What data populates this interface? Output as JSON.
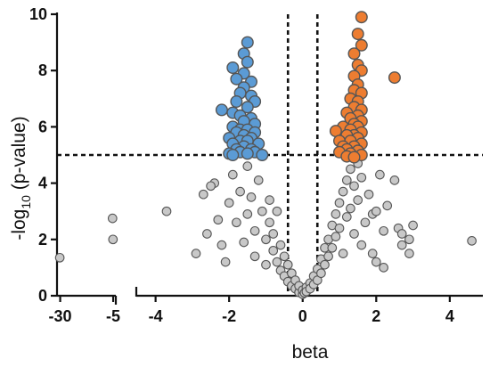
{
  "chart_data": {
    "type": "scatter",
    "title": "",
    "xlabel": "beta",
    "ylabel_parts": [
      "-log",
      "10",
      " (p-value)"
    ],
    "xlim_left_segment": [
      -31.5,
      -4.6
    ],
    "xlim_main_segment": [
      -4.5,
      4.9
    ],
    "ylim": [
      0,
      10
    ],
    "x_ticks": [
      {
        "value": -30,
        "label": "-30",
        "segment": "left"
      },
      {
        "value": -5,
        "label": "-5",
        "segment": "left"
      },
      {
        "value": -4,
        "label": "-4",
        "segment": "main"
      },
      {
        "value": -2,
        "label": "-2",
        "segment": "main"
      },
      {
        "value": 0,
        "label": "0",
        "segment": "main"
      },
      {
        "value": 2,
        "label": "2",
        "segment": "main"
      },
      {
        "value": 4,
        "label": "4",
        "segment": "main"
      }
    ],
    "y_ticks": [
      {
        "value": 0,
        "label": "0"
      },
      {
        "value": 2,
        "label": "2"
      },
      {
        "value": 4,
        "label": "4"
      },
      {
        "value": 6,
        "label": "6"
      },
      {
        "value": 8,
        "label": "8"
      },
      {
        "value": 10,
        "label": "10"
      }
    ],
    "thresholds": {
      "y": 5,
      "x": [
        -0.4,
        0.4
      ]
    },
    "colors": {
      "down": "#5b9bd5",
      "up": "#ed7d31",
      "ns": "#c8c8c8",
      "outline": "#555555"
    },
    "series": [
      {
        "group": "down",
        "points": [
          [
            -1.5,
            9.0
          ],
          [
            -1.6,
            8.6
          ],
          [
            -1.5,
            8.3
          ],
          [
            -1.9,
            8.1
          ],
          [
            -1.6,
            7.9
          ],
          [
            -1.8,
            7.7
          ],
          [
            -1.4,
            7.6
          ],
          [
            -1.6,
            7.4
          ],
          [
            -1.7,
            7.2
          ],
          [
            -1.4,
            7.1
          ],
          [
            -1.3,
            6.9
          ],
          [
            -1.8,
            6.9
          ],
          [
            -1.5,
            6.7
          ],
          [
            -2.2,
            6.6
          ],
          [
            -1.9,
            6.5
          ],
          [
            -1.7,
            6.4
          ],
          [
            -1.4,
            6.3
          ],
          [
            -1.6,
            6.2
          ],
          [
            -1.3,
            6.1
          ],
          [
            -1.9,
            6.0
          ],
          [
            -1.7,
            5.9
          ],
          [
            -1.5,
            5.9
          ],
          [
            -1.8,
            5.8
          ],
          [
            -1.3,
            5.8
          ],
          [
            -1.6,
            5.7
          ],
          [
            -1.4,
            5.6
          ],
          [
            -2.0,
            5.6
          ],
          [
            -1.7,
            5.5
          ],
          [
            -1.5,
            5.5
          ],
          [
            -1.9,
            5.4
          ],
          [
            -1.2,
            5.4
          ],
          [
            -1.6,
            5.3
          ],
          [
            -1.8,
            5.2
          ],
          [
            -1.4,
            5.2
          ],
          [
            -1.3,
            5.1
          ],
          [
            -1.7,
            5.1
          ],
          [
            -2.0,
            5.05
          ],
          [
            -1.5,
            5.05
          ],
          [
            -1.9,
            5.0
          ],
          [
            -1.1,
            5.0
          ]
        ]
      },
      {
        "group": "up",
        "points": [
          [
            1.6,
            9.9
          ],
          [
            1.5,
            9.3
          ],
          [
            1.6,
            8.9
          ],
          [
            1.4,
            8.6
          ],
          [
            1.5,
            8.2
          ],
          [
            1.6,
            8.0
          ],
          [
            1.4,
            7.8
          ],
          [
            2.5,
            7.75
          ],
          [
            1.5,
            7.5
          ],
          [
            1.4,
            7.3
          ],
          [
            1.6,
            7.2
          ],
          [
            1.3,
            7.0
          ],
          [
            1.5,
            6.9
          ],
          [
            1.4,
            6.7
          ],
          [
            1.6,
            6.6
          ],
          [
            1.2,
            6.5
          ],
          [
            1.5,
            6.4
          ],
          [
            1.3,
            6.3
          ],
          [
            1.6,
            6.2
          ],
          [
            1.4,
            6.1
          ],
          [
            1.1,
            6.0
          ],
          [
            1.5,
            6.0
          ],
          [
            1.3,
            5.9
          ],
          [
            0.9,
            5.85
          ],
          [
            1.6,
            5.8
          ],
          [
            1.4,
            5.7
          ],
          [
            1.2,
            5.7
          ],
          [
            1.5,
            5.6
          ],
          [
            1.0,
            5.5
          ],
          [
            1.3,
            5.5
          ],
          [
            1.6,
            5.4
          ],
          [
            1.1,
            5.3
          ],
          [
            1.4,
            5.3
          ],
          [
            1.2,
            5.2
          ],
          [
            1.5,
            5.15
          ],
          [
            1.0,
            5.1
          ],
          [
            1.3,
            5.05
          ],
          [
            1.6,
            5.0
          ],
          [
            1.2,
            4.95
          ],
          [
            1.4,
            4.92
          ]
        ]
      },
      {
        "group": "ns",
        "points": [
          [
            -30.2,
            1.35
          ],
          [
            -5.3,
            2.75
          ],
          [
            -5.1,
            2.0
          ],
          [
            -3.7,
            3.0
          ],
          [
            -2.9,
            1.5
          ],
          [
            -2.6,
            2.2
          ],
          [
            -2.7,
            3.6
          ],
          [
            -2.3,
            2.7
          ],
          [
            -2.4,
            4.0
          ],
          [
            -2.5,
            3.9
          ],
          [
            -2.2,
            1.8
          ],
          [
            -2.0,
            3.3
          ],
          [
            -2.1,
            1.2
          ],
          [
            -1.9,
            4.3
          ],
          [
            -1.8,
            2.6
          ],
          [
            -1.7,
            3.7
          ],
          [
            -1.6,
            1.9
          ],
          [
            -1.5,
            4.6
          ],
          [
            -1.5,
            2.9
          ],
          [
            -1.4,
            3.5
          ],
          [
            -1.3,
            1.4
          ],
          [
            -1.3,
            2.3
          ],
          [
            -1.2,
            4.1
          ],
          [
            -1.1,
            3.0
          ],
          [
            -1.0,
            2.0
          ],
          [
            -1.0,
            1.1
          ],
          [
            -0.9,
            2.6
          ],
          [
            -0.9,
            3.4
          ],
          [
            -0.8,
            1.6
          ],
          [
            -0.8,
            2.2
          ],
          [
            -0.7,
            1.2
          ],
          [
            -0.7,
            3.0
          ],
          [
            -0.6,
            0.9
          ],
          [
            -0.6,
            1.8
          ],
          [
            -0.5,
            0.7
          ],
          [
            -0.5,
            1.4
          ],
          [
            -0.4,
            0.5
          ],
          [
            -0.4,
            1.1
          ],
          [
            -0.3,
            0.35
          ],
          [
            -0.3,
            0.8
          ],
          [
            -0.2,
            0.25
          ],
          [
            -0.2,
            0.55
          ],
          [
            -0.1,
            0.12
          ],
          [
            -0.1,
            0.35
          ],
          [
            0.0,
            0.05
          ],
          [
            0.0,
            0.2
          ],
          [
            0.05,
            0.1
          ],
          [
            0.1,
            0.3
          ],
          [
            0.1,
            0.15
          ],
          [
            0.2,
            0.45
          ],
          [
            0.2,
            0.25
          ],
          [
            0.3,
            0.7
          ],
          [
            0.3,
            0.4
          ],
          [
            0.4,
            0.95
          ],
          [
            0.4,
            0.55
          ],
          [
            0.5,
            1.3
          ],
          [
            0.5,
            0.8
          ],
          [
            0.6,
            1.7
          ],
          [
            0.6,
            1.1
          ],
          [
            0.7,
            2.0
          ],
          [
            0.7,
            1.4
          ],
          [
            0.8,
            2.5
          ],
          [
            0.8,
            1.7
          ],
          [
            0.9,
            2.9
          ],
          [
            0.9,
            2.1
          ],
          [
            1.0,
            3.3
          ],
          [
            1.0,
            2.4
          ],
          [
            1.1,
            3.7
          ],
          [
            1.1,
            1.5
          ],
          [
            1.2,
            4.1
          ],
          [
            1.2,
            2.8
          ],
          [
            1.3,
            4.5
          ],
          [
            1.3,
            3.1
          ],
          [
            1.4,
            3.9
          ],
          [
            1.4,
            2.2
          ],
          [
            1.5,
            4.7
          ],
          [
            1.5,
            3.4
          ],
          [
            1.6,
            1.8
          ],
          [
            1.6,
            4.2
          ],
          [
            1.7,
            2.6
          ],
          [
            1.8,
            3.6
          ],
          [
            1.9,
            1.5
          ],
          [
            1.9,
            2.9
          ],
          [
            2.0,
            3.0
          ],
          [
            2.0,
            1.2
          ],
          [
            2.1,
            4.3
          ],
          [
            2.2,
            2.3
          ],
          [
            2.2,
            1.0
          ],
          [
            2.3,
            3.2
          ],
          [
            2.5,
            4.1
          ],
          [
            2.6,
            2.4
          ],
          [
            2.7,
            1.8
          ],
          [
            2.7,
            2.2
          ],
          [
            2.9,
            1.5
          ],
          [
            2.9,
            2.0
          ],
          [
            3.0,
            2.5
          ],
          [
            4.6,
            1.95
          ]
        ]
      }
    ]
  }
}
